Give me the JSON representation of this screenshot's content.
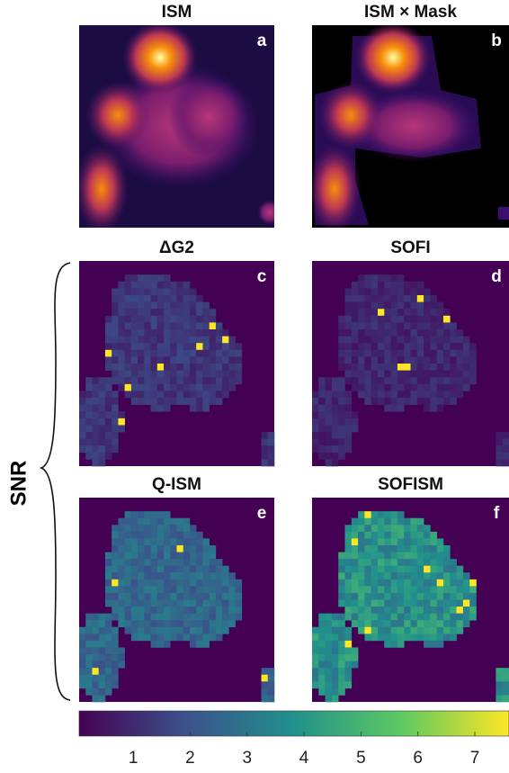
{
  "panels": [
    {
      "title": "ISM",
      "label": "a"
    },
    {
      "title": "ISM × Mask",
      "label": "b"
    },
    {
      "title": "ΔG2",
      "label": "c"
    },
    {
      "title": "SOFI",
      "label": "d"
    },
    {
      "title": "Q-ISM",
      "label": "e"
    },
    {
      "title": "SOFISM",
      "label": "f"
    }
  ],
  "side_label": "SNR",
  "colorbar": {
    "xlim": [
      0.05,
      7.6
    ],
    "xticks": [
      1,
      2,
      3,
      4,
      5,
      6,
      7
    ]
  }
}
